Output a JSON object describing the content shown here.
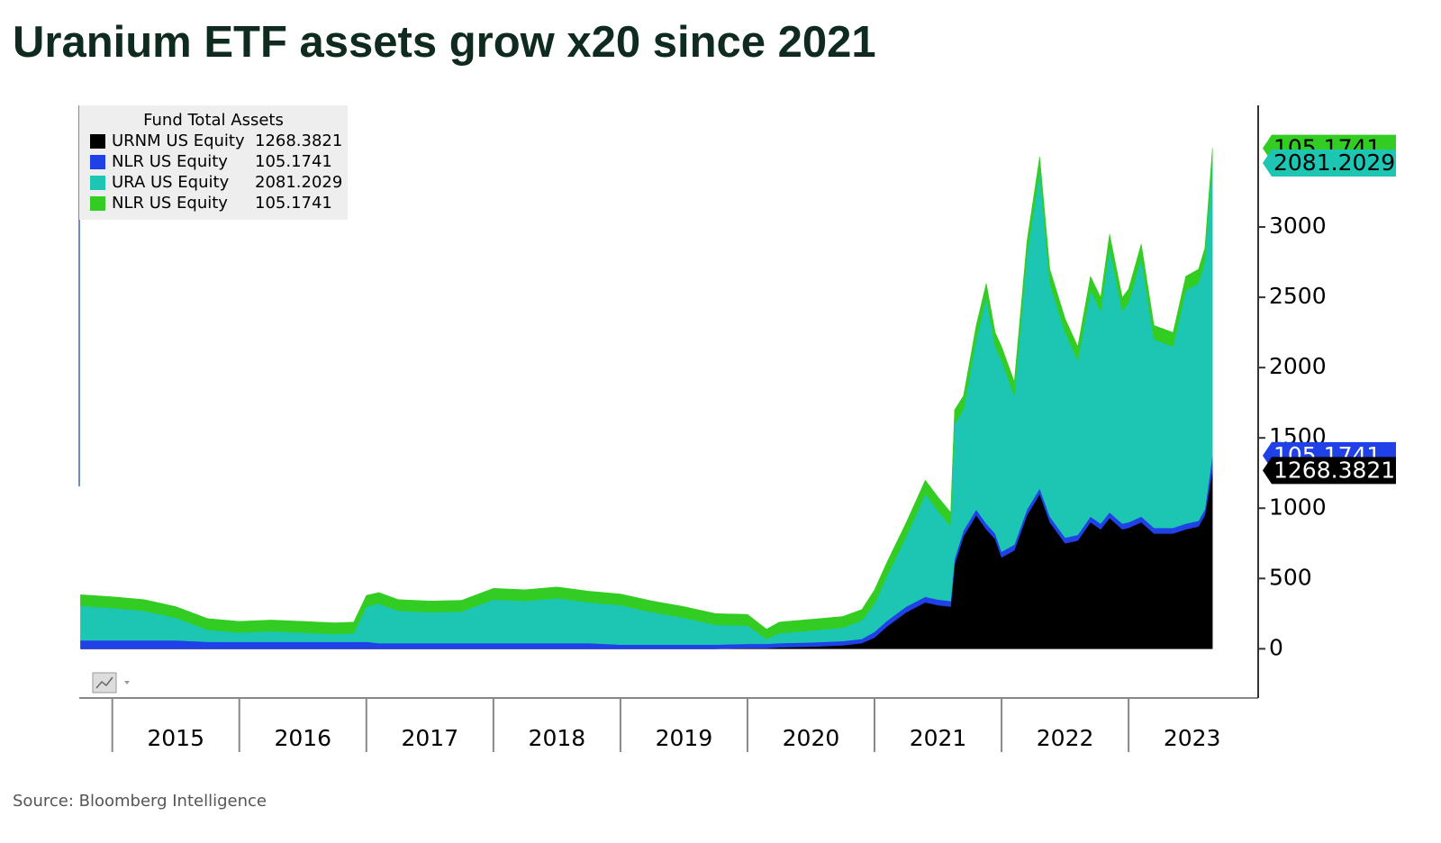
{
  "chart_data": {
    "type": "stacked_area",
    "title": "Uranium ETF assets grow x20 since 2021",
    "legend_title": "Fund Total Assets",
    "source": "Source: Bloomberg Intelligence",
    "x": [
      2014.75,
      2015.0,
      2015.25,
      2015.5,
      2015.75,
      2016.0,
      2016.25,
      2016.5,
      2016.75,
      2016.9,
      2017.0,
      2017.1,
      2017.25,
      2017.5,
      2017.75,
      2018.0,
      2018.25,
      2018.5,
      2018.75,
      2019.0,
      2019.25,
      2019.5,
      2019.75,
      2020.0,
      2020.15,
      2020.25,
      2020.5,
      2020.75,
      2020.9,
      2021.0,
      2021.1,
      2021.25,
      2021.4,
      2021.5,
      2021.6,
      2021.63,
      2021.7,
      2021.8,
      2021.88,
      2021.95,
      2022.0,
      2022.1,
      2022.2,
      2022.3,
      2022.38,
      2022.5,
      2022.6,
      2022.7,
      2022.78,
      2022.85,
      2022.95,
      2023.0,
      2023.1,
      2023.2,
      2023.35,
      2023.45,
      2023.55,
      2023.6,
      2023.66
    ],
    "series": [
      {
        "name": "URNM US Equity",
        "color": "#000000",
        "text_color": "#ffffff",
        "last": 1268.3821,
        "values": [
          0,
          0,
          0,
          0,
          0,
          0,
          0,
          0,
          0,
          0,
          0,
          0,
          0,
          0,
          0,
          0,
          0,
          0,
          0,
          0,
          0,
          0,
          0,
          5,
          5,
          10,
          15,
          25,
          40,
          80,
          160,
          260,
          330,
          310,
          300,
          600,
          800,
          950,
          850,
          780,
          650,
          700,
          950,
          1100,
          900,
          750,
          770,
          900,
          850,
          930,
          850,
          860,
          900,
          820,
          820,
          850,
          870,
          950,
          1268.3821
        ]
      },
      {
        "name": "NLR US Equity",
        "color": "#2040e8",
        "text_color": "#ffffff",
        "last": 105.1741,
        "values": [
          60,
          60,
          60,
          60,
          50,
          50,
          50,
          50,
          50,
          50,
          50,
          40,
          40,
          40,
          40,
          40,
          40,
          40,
          40,
          30,
          30,
          30,
          30,
          30,
          30,
          30,
          30,
          30,
          30,
          40,
          40,
          40,
          40,
          40,
          40,
          40,
          40,
          40,
          40,
          40,
          40,
          40,
          40,
          40,
          40,
          40,
          40,
          40,
          40,
          40,
          40,
          40,
          40,
          40,
          40,
          40,
          40,
          40,
          105.1741
        ]
      },
      {
        "name": "URA US Equity",
        "color": "#1cc6b2",
        "text_color": "#000000",
        "last": 2081.2029,
        "values": [
          245,
          230,
          210,
          160,
          85,
          65,
          75,
          65,
          55,
          60,
          250,
          280,
          230,
          220,
          225,
          310,
          300,
          320,
          290,
          280,
          230,
          190,
          140,
          130,
          35,
          70,
          85,
          95,
          130,
          200,
          320,
          500,
          730,
          630,
          530,
          960,
          860,
          1210,
          1610,
          1330,
          1360,
          1060,
          1810,
          2260,
          1660,
          1460,
          1240,
          1610,
          1510,
          1880,
          1510,
          1560,
          1840,
          1340,
          1290,
          1660,
          1690,
          1760,
          2081.2029
        ]
      },
      {
        "name": "NLR US Equity",
        "color": "#33cc22",
        "text_color": "#000000",
        "last": 105.1741,
        "values": [
          80,
          80,
          80,
          80,
          80,
          80,
          80,
          80,
          80,
          80,
          80,
          80,
          80,
          80,
          80,
          80,
          80,
          80,
          80,
          80,
          80,
          80,
          80,
          80,
          70,
          80,
          80,
          80,
          80,
          100,
          100,
          100,
          100,
          100,
          100,
          100,
          100,
          100,
          100,
          100,
          100,
          100,
          100,
          100,
          100,
          100,
          100,
          100,
          100,
          100,
          100,
          100,
          100,
          100,
          100,
          100,
          100,
          100,
          105.1741
        ]
      }
    ],
    "xlim": [
      2014.74,
      2024.02
    ],
    "xticks": [
      2015,
      2016,
      2017,
      2018,
      2019,
      2020,
      2021,
      2022,
      2023
    ],
    "ylim": [
      -350,
      3865
    ],
    "yticks": [
      0,
      500,
      1000,
      1500,
      2000,
      2500,
      3000
    ],
    "grid": false,
    "legend": "top-left"
  }
}
